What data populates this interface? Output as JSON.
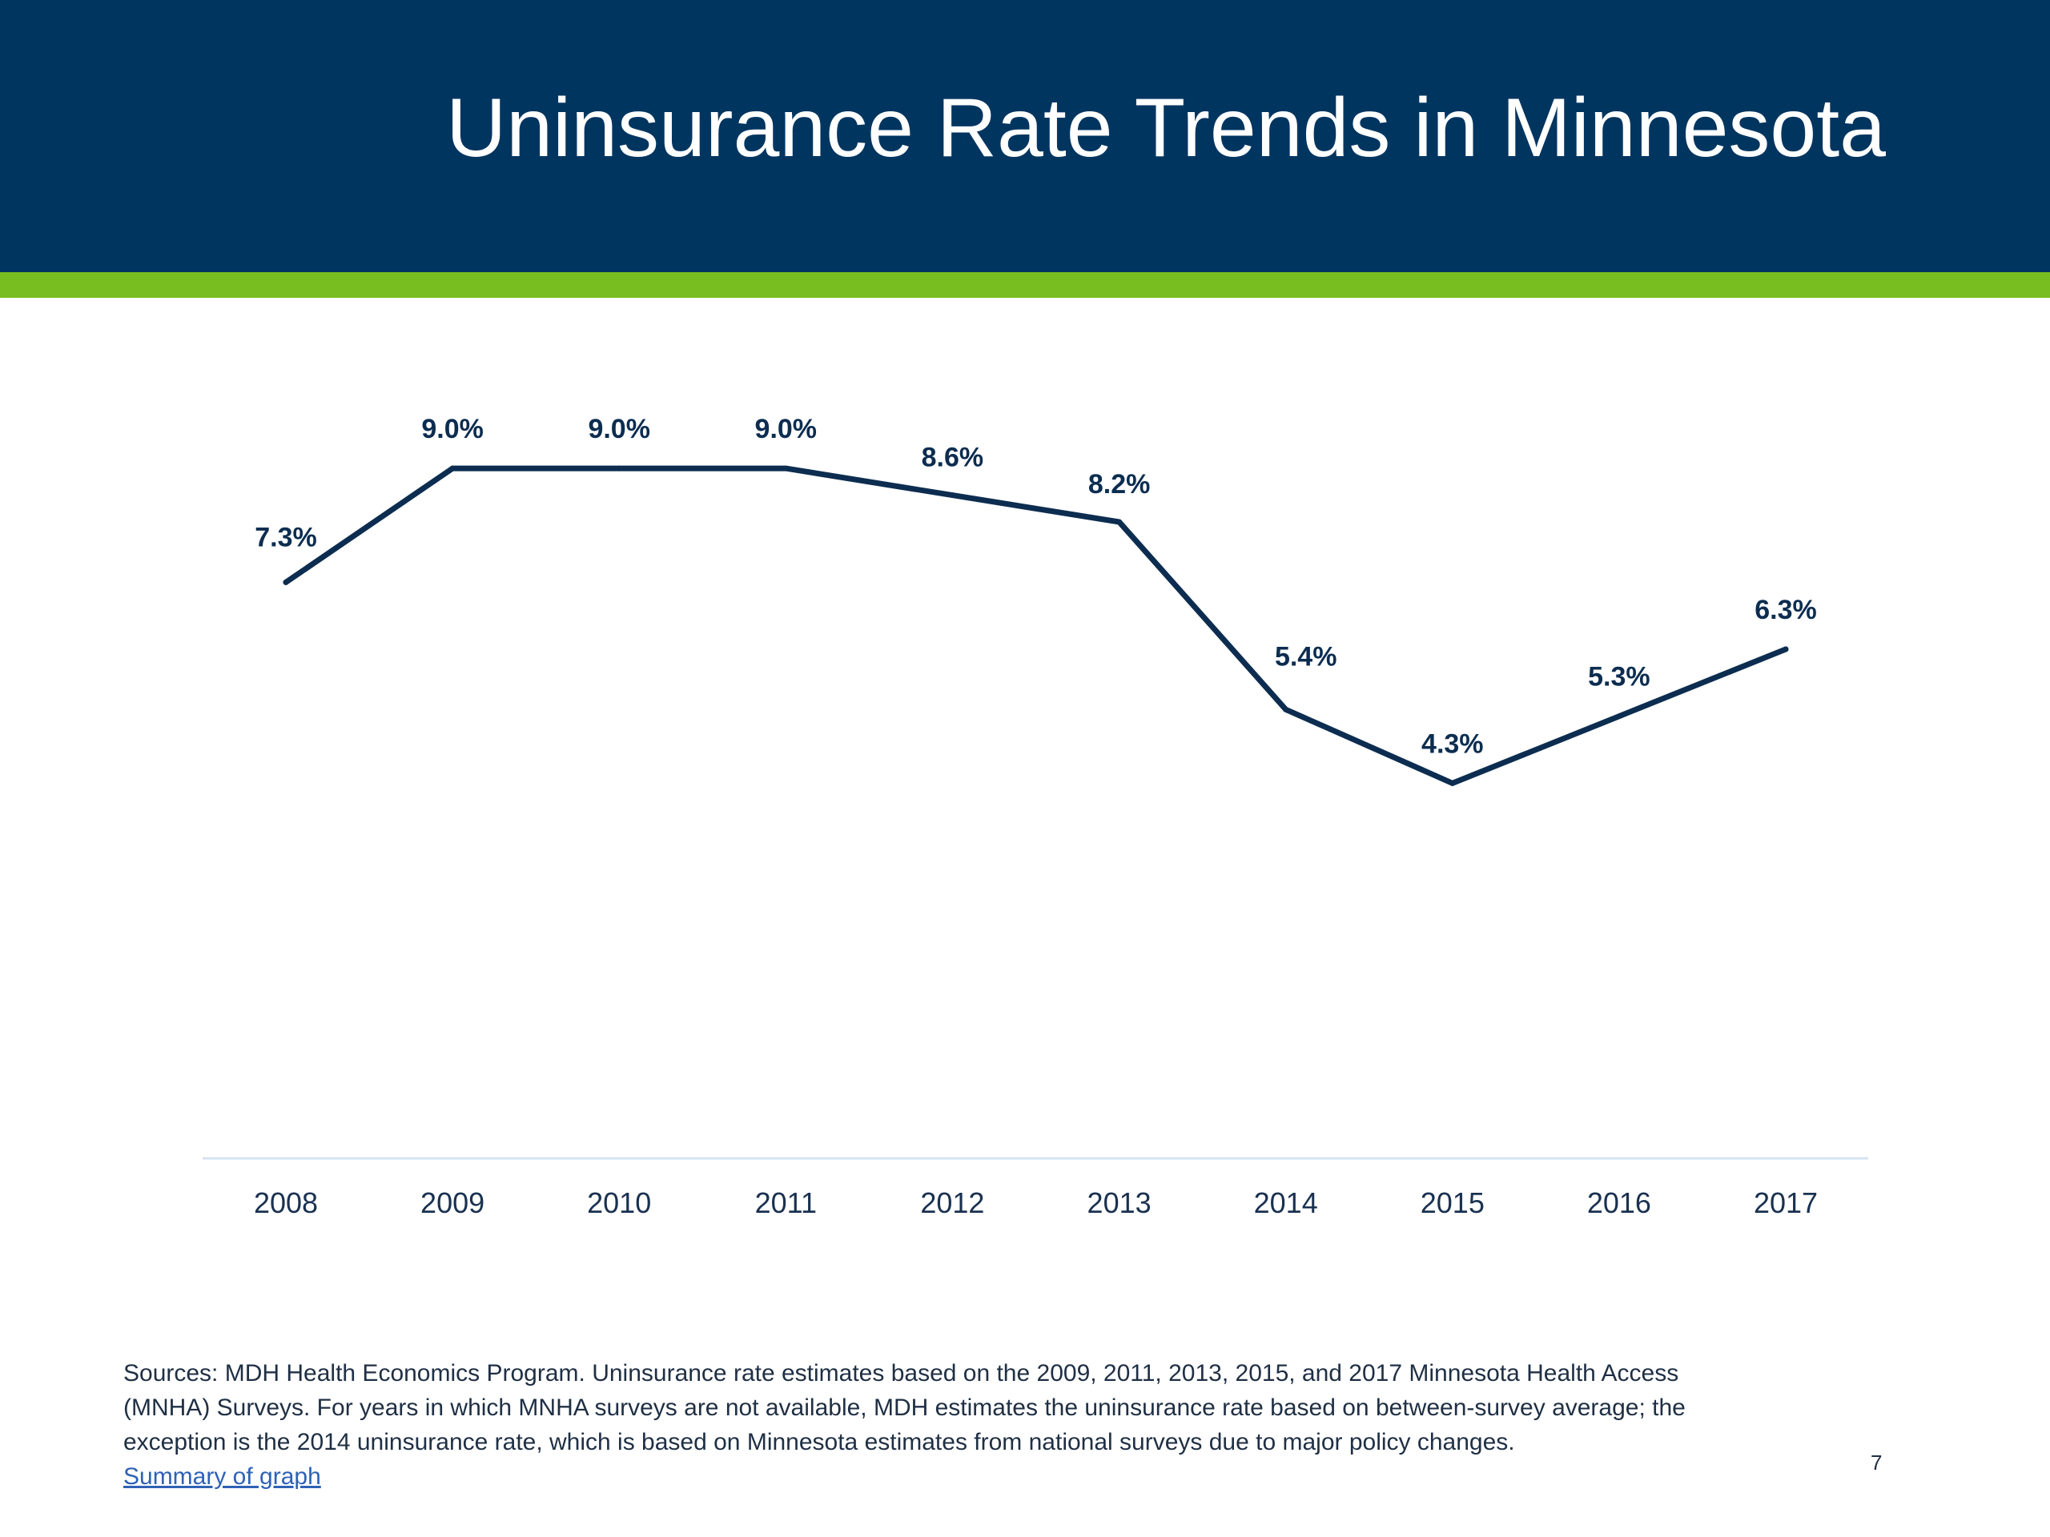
{
  "slide": {
    "title": "Uninsurance Rate Trends in Minnesota",
    "page_number": "7"
  },
  "colors": {
    "header_bg": "#003560",
    "accent_green": "#78be20",
    "line": "#0c2d50",
    "axis": "#d6e4f0",
    "link": "#2e62b5"
  },
  "chart_data": {
    "type": "line",
    "title": "",
    "xlabel": "",
    "ylabel": "",
    "x": [
      "2008",
      "2009",
      "2010",
      "2011",
      "2012",
      "2013",
      "2014",
      "2015",
      "2016",
      "2017"
    ],
    "series": [
      {
        "values": [
          7.3,
          9.0,
          9.0,
          9.0,
          8.6,
          8.2,
          5.4,
          4.3,
          5.3,
          6.3
        ],
        "labels": [
          "7.3%",
          "9.0%",
          "9.0%",
          "9.0%",
          "8.6%",
          "8.2%",
          "5.4%",
          "4.3%",
          "5.3%",
          "6.3%"
        ]
      }
    ],
    "ylim": [
      -1.3,
      9.3
    ],
    "grid": false,
    "legend": "none",
    "y_axis_visible": false
  },
  "footer": {
    "sources_line1": "Sources: MDH Health Economics Program. Uninsurance rate estimates based on the 2009, 2011, 2013, 2015, and 2017 Minnesota Health Access",
    "sources_line2": "(MNHA) Surveys. For years in which MNHA surveys are not available, MDH estimates the uninsurance rate based on between-survey average; the",
    "sources_line3": "exception is the 2014 uninsurance rate, which is based on Minnesota estimates from national surveys due to major policy changes.",
    "summary_link": "Summary of graph"
  }
}
